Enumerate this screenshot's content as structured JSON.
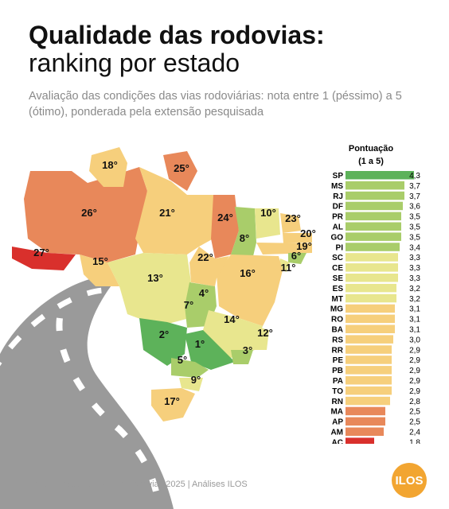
{
  "header": {
    "title": "Qualidade das rodovias:",
    "subtitle": "ranking por estado",
    "description": "Avaliação das condições das vias rodoviárias: nota entre 1 (péssimo) a 5 (ótimo), ponderada pela extensão pesquisada"
  },
  "footer": {
    "source": "Fonte: Pesquisa CNT de Rodovias 2025 | Análises ILOS",
    "logo_text": "ILOS"
  },
  "colors": {
    "best": "#5db25a",
    "good": "#a9cd6a",
    "mid": "#e8e68e",
    "fair": "#f6cf7c",
    "poor": "#e8885a",
    "worst": "#d9302c",
    "road": "#9c9c9c"
  },
  "map_labels": [
    {
      "state": "AC",
      "rank": "27°",
      "score": 1.8
    },
    {
      "state": "AM",
      "rank": "26°",
      "score": 2.4
    },
    {
      "state": "RR",
      "rank": "18°",
      "score": 2.9
    },
    {
      "state": "AP",
      "rank": "25°",
      "score": 2.5
    },
    {
      "state": "PA",
      "rank": "21°",
      "score": 2.9
    },
    {
      "state": "MA",
      "rank": "24°",
      "score": 2.5
    },
    {
      "state": "RO",
      "rank": "15°",
      "score": 3.1
    },
    {
      "state": "MT",
      "rank": "13°",
      "score": 3.2
    },
    {
      "state": "TO",
      "rank": "22°",
      "score": 2.9
    },
    {
      "state": "PI",
      "rank": "8°",
      "score": 3.4
    },
    {
      "state": "CE",
      "rank": "10°",
      "score": 3.3
    },
    {
      "state": "RN",
      "rank": "23°",
      "score": 2.8
    },
    {
      "state": "PB",
      "rank": "20°",
      "score": 2.9
    },
    {
      "state": "PE",
      "rank": "19°",
      "score": 2.9
    },
    {
      "state": "AL",
      "rank": "6°",
      "score": 3.5
    },
    {
      "state": "SE",
      "rank": "11°",
      "score": 3.3
    },
    {
      "state": "BA",
      "rank": "16°",
      "score": 3.1
    },
    {
      "state": "DF",
      "rank": "4°",
      "score": 3.6
    },
    {
      "state": "GO",
      "rank": "7°",
      "score": 3.5
    },
    {
      "state": "MG",
      "rank": "14°",
      "score": 3.1
    },
    {
      "state": "ES",
      "rank": "12°",
      "score": 3.2
    },
    {
      "state": "MS",
      "rank": "2°",
      "score": 3.7
    },
    {
      "state": "SP",
      "rank": "1°",
      "score": 4.3
    },
    {
      "state": "RJ",
      "rank": "3°",
      "score": 3.7
    },
    {
      "state": "PR",
      "rank": "5°",
      "score": 3.5
    },
    {
      "state": "SC",
      "rank": "9°",
      "score": 3.3
    },
    {
      "state": "RS",
      "rank": "17°",
      "score": 3.0
    }
  ],
  "chart_data": {
    "type": "bar",
    "orientation": "horizontal",
    "title": "Pontuação (1 a 5)",
    "categories": [
      "SP",
      "MS",
      "RJ",
      "DF",
      "PR",
      "AL",
      "GO",
      "PI",
      "SC",
      "CE",
      "SE",
      "ES",
      "MT",
      "MG",
      "RO",
      "BA",
      "RS",
      "RR",
      "PE",
      "PB",
      "PA",
      "TO",
      "RN",
      "MA",
      "AP",
      "AM",
      "AC"
    ],
    "values": [
      4.3,
      3.7,
      3.7,
      3.6,
      3.5,
      3.5,
      3.5,
      3.4,
      3.3,
      3.3,
      3.3,
      3.2,
      3.2,
      3.1,
      3.1,
      3.1,
      3.0,
      2.9,
      2.9,
      2.9,
      2.9,
      2.9,
      2.8,
      2.5,
      2.5,
      2.4,
      1.8
    ],
    "value_labels": [
      "4,3",
      "3,7",
      "3,7",
      "3,6",
      "3,5",
      "3,5",
      "3,5",
      "3,4",
      "3,3",
      "3,3",
      "3,3",
      "3,2",
      "3,2",
      "3,1",
      "3,1",
      "3,1",
      "3,0",
      "2,9",
      "2,9",
      "2,9",
      "2,9",
      "2,9",
      "2,8",
      "2,5",
      "2,5",
      "2,4",
      "1,8"
    ],
    "xlim": [
      0,
      4.3
    ],
    "grid": false,
    "legend": "none"
  }
}
